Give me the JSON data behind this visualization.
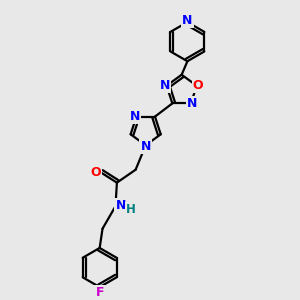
{
  "bg_color": "#e8e8e8",
  "bond_color": "#000000",
  "bond_width": 1.6,
  "atom_colors": {
    "N": "#0000ff",
    "O": "#ff0000",
    "F": "#cc00cc",
    "H": "#008080",
    "C": "#000000"
  }
}
